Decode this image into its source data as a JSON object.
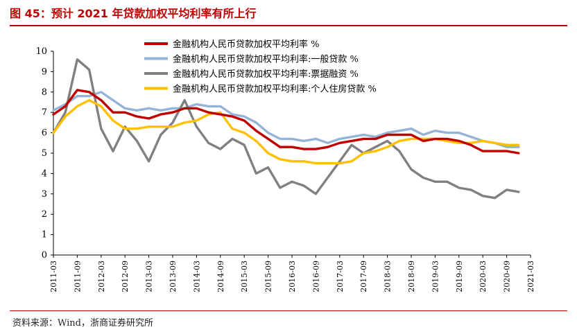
{
  "header": {
    "title": "图 45：预计 2021 年贷款加权平均利率有所上行"
  },
  "footer": {
    "source": "资料来源：Wind，浙商证券研究所"
  },
  "chart_data": {
    "type": "line",
    "title": "预计 2021 年贷款加权平均利率有所上行",
    "xlabel": "",
    "ylabel": "",
    "ylim": [
      0,
      10
    ],
    "yticks": [
      0,
      1,
      2,
      3,
      4,
      5,
      6,
      7,
      8,
      9,
      10
    ],
    "grid": false,
    "legend_position": "top-right",
    "x": [
      "2011-03",
      "2011-06",
      "2011-09",
      "2011-12",
      "2012-03",
      "2012-06",
      "2012-09",
      "2012-12",
      "2013-03",
      "2013-06",
      "2013-09",
      "2013-12",
      "2014-03",
      "2014-06",
      "2014-09",
      "2014-12",
      "2015-03",
      "2015-06",
      "2015-09",
      "2015-12",
      "2016-03",
      "2016-06",
      "2016-09",
      "2016-12",
      "2017-03",
      "2017-06",
      "2017-09",
      "2017-12",
      "2018-03",
      "2018-06",
      "2018-09",
      "2018-12",
      "2019-03",
      "2019-06",
      "2019-09",
      "2019-12",
      "2020-03",
      "2020-06",
      "2020-09",
      "2020-12",
      "2021-03"
    ],
    "xtick_labels": [
      "2011-03",
      "2011-09",
      "2012-03",
      "2012-09",
      "2013-03",
      "2013-09",
      "2014-03",
      "2014-09",
      "2015-03",
      "2015-09",
      "2016-03",
      "2016-09",
      "2017-03",
      "2017-09",
      "2018-03",
      "2018-09",
      "2019-03",
      "2019-09",
      "2020-03",
      "2020-09",
      "2021-03"
    ],
    "series": [
      {
        "name": "金融机构人民币贷款加权平均利率:一般贷款 %",
        "color": "#95b3d7",
        "values": [
          7.1,
          7.4,
          7.8,
          7.8,
          8.0,
          7.6,
          7.2,
          7.1,
          7.2,
          7.1,
          7.2,
          7.2,
          7.4,
          7.3,
          7.3,
          6.9,
          6.8,
          6.5,
          6.0,
          5.7,
          5.7,
          5.6,
          5.7,
          5.5,
          5.7,
          5.8,
          5.9,
          5.8,
          6.0,
          6.1,
          6.2,
          5.9,
          6.1,
          6.0,
          6.0,
          5.8,
          5.6,
          5.5,
          5.3,
          5.3,
          null
        ]
      },
      {
        "name": "金融机构人民币贷款加权平均利率:票据融资 %",
        "color": "#808080",
        "values": [
          6.0,
          7.0,
          9.6,
          9.1,
          6.2,
          5.1,
          6.3,
          5.6,
          4.6,
          5.9,
          6.5,
          7.6,
          6.3,
          5.5,
          5.2,
          5.7,
          5.4,
          4.0,
          4.3,
          3.3,
          3.6,
          3.4,
          3.0,
          3.8,
          4.6,
          5.4,
          5.0,
          5.3,
          5.6,
          5.1,
          4.2,
          3.8,
          3.6,
          3.6,
          3.3,
          3.2,
          2.9,
          2.8,
          3.2,
          3.1,
          null
        ]
      },
      {
        "name": "金融机构人民币贷款加权平均利率:个人住房贷款 %",
        "color": "#ffc000",
        "values": [
          6.0,
          6.8,
          7.3,
          7.6,
          7.3,
          6.6,
          6.2,
          6.2,
          6.3,
          6.3,
          6.3,
          6.5,
          6.6,
          6.9,
          7.0,
          6.2,
          6.0,
          5.6,
          5.0,
          4.7,
          4.6,
          4.6,
          4.5,
          4.5,
          4.5,
          4.6,
          5.0,
          5.1,
          5.3,
          5.6,
          5.7,
          5.7,
          5.7,
          5.6,
          5.5,
          5.5,
          5.6,
          5.5,
          5.4,
          5.4,
          null
        ]
      },
      {
        "name": "金融机构人民币贷款加权平均利率 %",
        "color": "#c00000",
        "values": [
          6.9,
          7.3,
          8.1,
          8.0,
          7.6,
          7.0,
          7.0,
          6.8,
          6.7,
          6.9,
          7.0,
          7.2,
          7.2,
          7.0,
          6.9,
          6.8,
          6.6,
          6.1,
          5.7,
          5.3,
          5.3,
          5.2,
          5.2,
          5.3,
          5.5,
          5.6,
          5.7,
          5.7,
          5.9,
          5.9,
          5.9,
          5.6,
          5.7,
          5.7,
          5.6,
          5.4,
          5.1,
          5.1,
          5.1,
          5.0,
          null
        ]
      }
    ],
    "legend": [
      {
        "label": "金融机构人民币贷款加权平均利率 %",
        "color": "#c00000"
      },
      {
        "label": "金融机构人民币贷款加权平均利率:一般贷款 %",
        "color": "#95b3d7"
      },
      {
        "label": "金融机构人民币贷款加权平均利率:票据融资 %",
        "color": "#808080"
      },
      {
        "label": "金融机构人民币贷款加权平均利率:个人住房贷款 %",
        "color": "#ffc000"
      }
    ]
  }
}
